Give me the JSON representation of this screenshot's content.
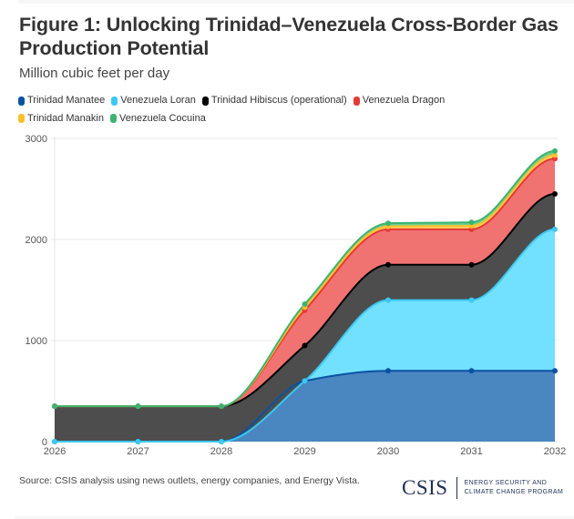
{
  "header": {
    "title": "Figure 1: Unlocking Trinidad–Venezuela Cross-Border Gas Production Potential",
    "subtitle": "Million cubic feet per day"
  },
  "footer": {
    "source": "Source: CSIS analysis using news outlets, energy companies, and Energy Vista.",
    "logo_mark": "CSIS",
    "logo_line1": "ENERGY SECURITY AND",
    "logo_line2": "CLIMATE CHANGE PROGRAM"
  },
  "chart_data": {
    "type": "area",
    "stacked": true,
    "title": "Figure 1: Unlocking Trinidad–Venezuela Cross-Border Gas Production Potential",
    "subtitle": "Million cubic feet per day",
    "xlabel": "",
    "ylabel": "",
    "x": [
      "2026",
      "2027",
      "2028",
      "2029",
      "2030",
      "2031",
      "2032"
    ],
    "ylim": [
      0,
      3000
    ],
    "yticks": [
      0,
      1000,
      2000,
      3000
    ],
    "grid": true,
    "legend_position": "top-left",
    "series": [
      {
        "name": "Trinidad Manatee",
        "color": "#0a52a3",
        "fill": "#4a86c0",
        "values": [
          0,
          0,
          0,
          600,
          700,
          700,
          700
        ]
      },
      {
        "name": "Venezuela Loran",
        "color": "#3cc8f0",
        "fill": "#72e0ff",
        "values": [
          0,
          0,
          0,
          0,
          700,
          700,
          1400
        ]
      },
      {
        "name": "Trinidad Hibiscus (operational)",
        "color": "#000000",
        "fill": "#4d4d4d",
        "values": [
          350,
          350,
          350,
          350,
          350,
          350,
          350
        ]
      },
      {
        "name": "Venezuela Dragon",
        "color": "#e53935",
        "fill": "#f07372",
        "values": [
          0,
          0,
          0,
          350,
          350,
          350,
          350
        ]
      },
      {
        "name": "Trinidad Manakin",
        "color": "#fbc02d",
        "fill": "#fdd35e",
        "values": [
          0,
          0,
          0,
          30,
          30,
          35,
          35
        ]
      },
      {
        "name": "Venezuela Cocuina",
        "color": "#3cb371",
        "fill": "#6fcf91",
        "values": [
          0,
          0,
          0,
          30,
          30,
          35,
          40
        ]
      }
    ]
  }
}
